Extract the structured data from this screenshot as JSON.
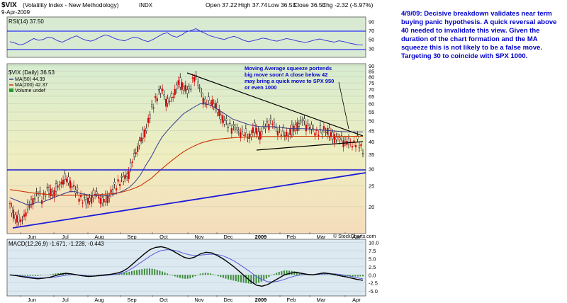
{
  "header": {
    "symbol": "$VIX",
    "name": "(Volatility Index - New Methodology)",
    "exchange": "INDX",
    "date": "9-Apr-2009",
    "open": "Open 37.22",
    "high": "High 37.74",
    "low": "Low 36.53",
    "close": "Close 36.53",
    "chg": "Chg -2.32 (-5.97%)",
    "watermark": "© StockCharts.com"
  },
  "rsi_panel": {
    "label": "RSI(14) 37.50",
    "ticks": [
      30,
      50,
      70,
      90
    ],
    "values": [
      45,
      42,
      38,
      40,
      46,
      52,
      48,
      50,
      55,
      53,
      47,
      44,
      49,
      54,
      58,
      52,
      48,
      46,
      50,
      56,
      60,
      57,
      52,
      49,
      47,
      51,
      55,
      53,
      48,
      45,
      50,
      56,
      62,
      65,
      58,
      55,
      60,
      67,
      70,
      74,
      68,
      63,
      58,
      55,
      52,
      50,
      54,
      57,
      53,
      48,
      45,
      47,
      50,
      53,
      51,
      48,
      46,
      49,
      52,
      50,
      47,
      45,
      43,
      46,
      49,
      51,
      48,
      46,
      44,
      47,
      45,
      42,
      40,
      38,
      37.5
    ]
  },
  "price_panel": {
    "legend": {
      "title": "$VIX (Daily) 36.53",
      "ma50": "MA(50) 44.39",
      "ma200": "MA(200) 42.37",
      "volume": "Volume undef"
    },
    "ticks": [
      20,
      25,
      30,
      35,
      40,
      45,
      50,
      55,
      60,
      65,
      70,
      75,
      80,
      85,
      90
    ],
    "annotation": [
      "Moving Average squeeze portends",
      "big move soon!  A close below 42",
      "may bring a quick move to SPX 950",
      "or even 1000"
    ]
  },
  "macd_panel": {
    "label": "MACD(12,26,9) -1.671, -1.228, -0.443",
    "ticks": [
      -5.0,
      -2.5,
      0.0,
      2.5,
      5.0,
      7.5,
      10.0
    ],
    "macd": [
      0,
      -0.2,
      -0.5,
      -0.8,
      -1,
      -1.2,
      -1,
      -0.8,
      -0.3,
      0.2,
      0.5,
      0.3,
      0,
      -0.3,
      -0.5,
      -0.4,
      -0.2,
      0,
      0.2,
      0.5,
      1,
      2,
      3.5,
      5,
      6.5,
      7.8,
      8.5,
      8.7,
      8.3,
      7.5,
      6.5,
      5.5,
      5,
      5.5,
      6.5,
      7,
      6.8,
      6,
      5,
      3.8,
      2.5,
      1,
      -0.5,
      -2,
      -3.2,
      -3.5,
      -3,
      -2,
      -1,
      0,
      0.5,
      0.8,
      0.5,
      0.2,
      0,
      0.3,
      0.6,
      0.4,
      0.1,
      -0.3,
      -0.6,
      -1,
      -1.4,
      -1.67
    ],
    "signal": [
      0,
      -0.1,
      -0.3,
      -0.5,
      -0.7,
      -0.9,
      -0.95,
      -0.9,
      -0.7,
      -0.4,
      -0.1,
      0.1,
      0.05,
      -0.1,
      -0.3,
      -0.35,
      -0.3,
      -0.2,
      0,
      0.2,
      0.5,
      1.2,
      2.2,
      3.4,
      4.6,
      5.8,
      6.8,
      7.5,
      7.8,
      7.7,
      7.3,
      6.7,
      6.2,
      6,
      6.1,
      6.3,
      6.4,
      6.3,
      5.9,
      5.2,
      4.3,
      3.2,
      2,
      0.8,
      -0.5,
      -1.5,
      -2.1,
      -2.2,
      -1.9,
      -1.4,
      -0.8,
      -0.3,
      0,
      0.1,
      0.1,
      0.15,
      0.3,
      0.35,
      0.3,
      0.1,
      -0.15,
      -0.5,
      -0.9,
      -1.23
    ]
  },
  "x_axis": {
    "labels": [
      "Jun",
      "Jul",
      "Aug",
      "Sep",
      "Oct",
      "Nov",
      "Dec",
      "2009",
      "Feb",
      "Mar",
      "Apr"
    ]
  },
  "commentary": "4/9/09:  Decisive breakdown validates near term buying panic hypothesis.  A quick reversal above 40 needed to invalidate this view.  Given the duration of the chart formation and the MA squeeze this is not likely to be a false move.  Targeting 30 to coincide with SPX 1000.",
  "chart_data": {
    "type": "line",
    "title": "$VIX (Volatility Index - New Methodology)",
    "series": [
      {
        "name": "$VIX",
        "values": [
          20,
          18,
          17,
          19,
          21,
          23,
          22,
          24,
          23,
          25,
          27,
          26,
          24,
          22,
          21,
          22,
          23,
          21,
          22,
          24,
          26,
          27,
          29,
          35,
          40,
          45,
          55,
          65,
          70,
          60,
          65,
          75,
          72,
          68,
          82,
          70,
          60,
          62,
          58,
          52,
          48,
          47,
          45,
          44,
          42,
          46,
          43,
          47,
          50,
          46,
          44,
          43,
          45,
          48,
          50,
          47,
          45,
          44,
          46,
          43,
          42,
          41,
          40,
          39,
          40,
          36.53
        ]
      },
      {
        "name": "MA(50)",
        "values": [
          22,
          21.5,
          21,
          20.5,
          20.5,
          21,
          21,
          21.5,
          22,
          22.5,
          23,
          23.5,
          23.5,
          23,
          22.8,
          22.6,
          22.5,
          22.4,
          22.5,
          22.8,
          23.2,
          23.8,
          24.6,
          26,
          28,
          31,
          34,
          38,
          42,
          45,
          48,
          51,
          54,
          56,
          58,
          60,
          60,
          59,
          57,
          55,
          53,
          51,
          50,
          49,
          48,
          47.5,
          47,
          47,
          47,
          46.8,
          46.5,
          46.2,
          46,
          46,
          46,
          45.8,
          45.6,
          45.4,
          45.2,
          45,
          44.8,
          44.6,
          44.5,
          44.4,
          44.4,
          44.39
        ]
      },
      {
        "name": "MA(200)",
        "values": [
          24,
          23.8,
          23.6,
          23.4,
          23.2,
          23,
          22.9,
          22.8,
          22.7,
          22.6,
          22.6,
          22.6,
          22.6,
          22.6,
          22.6,
          22.6,
          22.7,
          22.8,
          22.9,
          23,
          23.2,
          23.5,
          23.9,
          24.4,
          25,
          26,
          27,
          28.5,
          30,
          31.5,
          33,
          34.5,
          36,
          37.2,
          38.3,
          39.3,
          40,
          40.6,
          41,
          41.3,
          41.5,
          41.7,
          41.9,
          42,
          42.1,
          42.2,
          42.2,
          42.3,
          42.3,
          42.3,
          42.35,
          42.4,
          42.4,
          42.4,
          42.4,
          42.4,
          42.4,
          42.4,
          42.4,
          42.4,
          42.4,
          42.38,
          42.38,
          42.37,
          42.37,
          42.37
        ]
      }
    ],
    "ylim": [
      15,
      92
    ],
    "xlabel": "",
    "ylabel": ""
  }
}
